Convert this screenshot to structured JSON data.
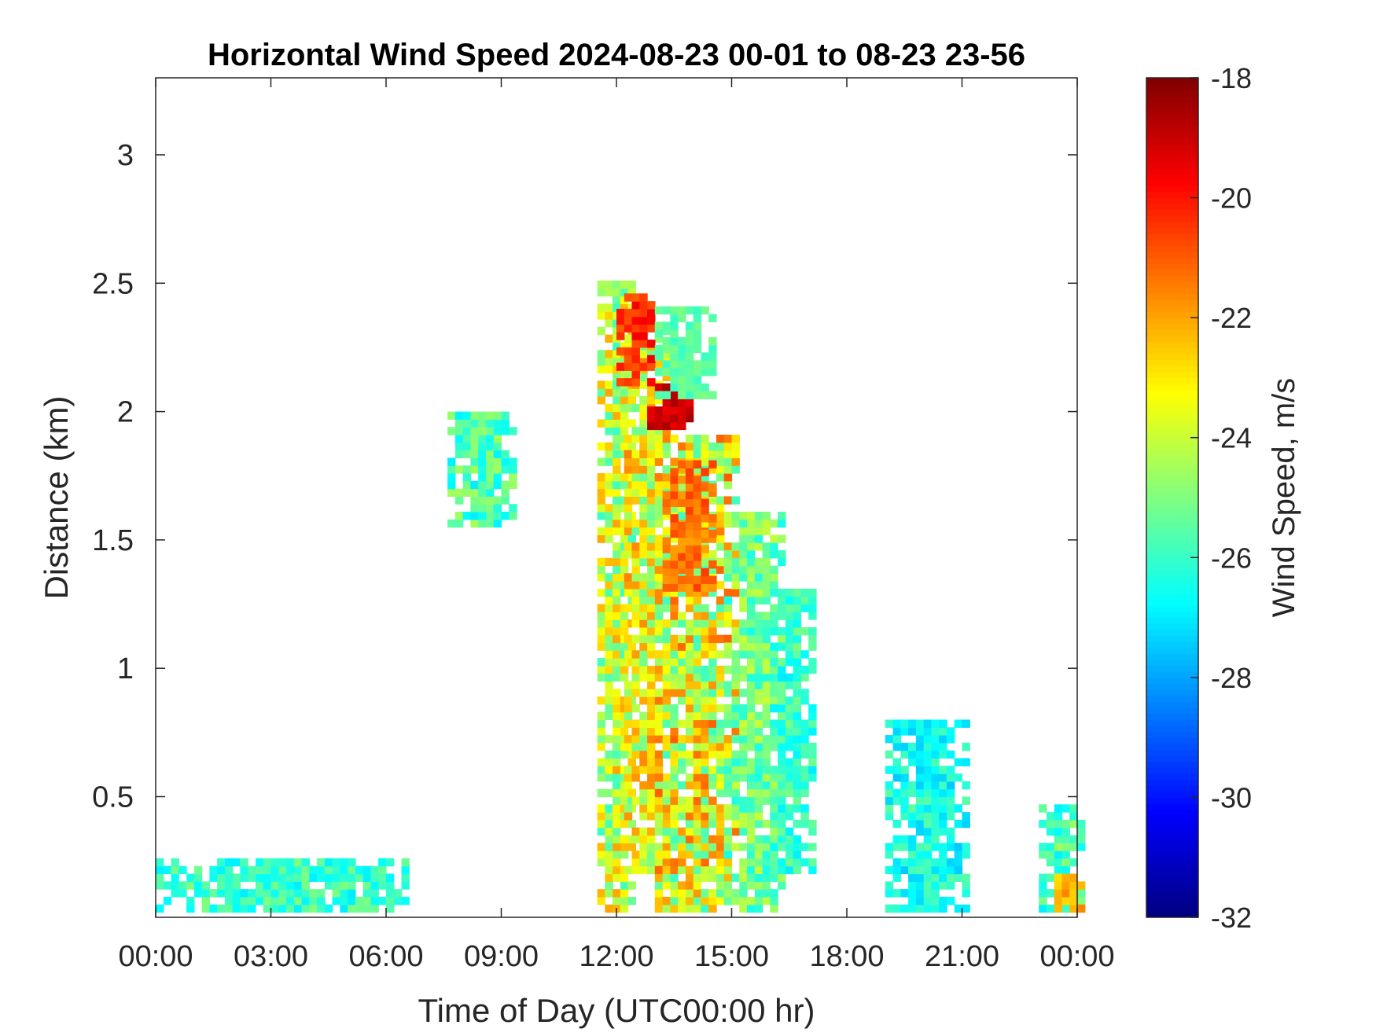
{
  "chart_data": {
    "type": "heatmap",
    "title": "Horizontal Wind Speed 2024-08-23 00-01 to 08-23 23-56",
    "xlabel": "Time of Day (UTC00:00 hr)",
    "ylabel": "Distance (km)",
    "colorbar_label": "Wind Speed, m/s",
    "xlim": [
      0,
      24
    ],
    "ylim": [
      0.03,
      3.3
    ],
    "x_ticks": [
      0,
      3,
      6,
      9,
      12,
      15,
      18,
      21,
      24
    ],
    "x_tick_labels": [
      "00:00",
      "03:00",
      "06:00",
      "09:00",
      "12:00",
      "15:00",
      "18:00",
      "21:00",
      "00:00"
    ],
    "y_ticks": [
      0.5,
      1,
      1.5,
      2,
      2.5,
      3
    ],
    "y_tick_labels": [
      "0.5",
      "1",
      "1.5",
      "2",
      "2.5",
      "3"
    ],
    "colorbar_ticks": [
      -32,
      -30,
      -28,
      -26,
      -24,
      -22,
      -20,
      -18
    ],
    "colorbar_tick_labels": [
      "-32",
      "-30",
      "-28",
      "-26",
      "-24",
      "-22",
      "-20",
      "-18"
    ],
    "clim": [
      -32,
      -18
    ],
    "colormap": "jet",
    "grid": false,
    "time_step_hr": 0.2,
    "range_step_km": 0.03,
    "data_regions": [
      {
        "t": [
          11.5,
          12.4
        ],
        "z": [
          0.05,
          2.5
        ],
        "v": [
          -26,
          -22
        ]
      },
      {
        "t": [
          12.2,
          13.2
        ],
        "z": [
          0.2,
          2.3
        ],
        "v": [
          -25.5,
          -21.5
        ]
      },
      {
        "t": [
          13.0,
          15.0
        ],
        "z": [
          0.05,
          1.9
        ],
        "v": [
          -26,
          -21
        ]
      },
      {
        "t": [
          13.2,
          14.4
        ],
        "z": [
          1.3,
          1.8
        ],
        "v": [
          -22,
          -20.5
        ]
      },
      {
        "t": [
          12.8,
          13.8
        ],
        "z": [
          1.93,
          2.08
        ],
        "v": [
          -19.5,
          -18.5
        ]
      },
      {
        "t": [
          12.0,
          12.8
        ],
        "z": [
          2.1,
          2.45
        ],
        "v": [
          -21,
          -19.5
        ]
      },
      {
        "t": [
          13.0,
          14.5
        ],
        "z": [
          2.05,
          2.4
        ],
        "v": [
          -26,
          -25
        ]
      },
      {
        "t": [
          14.8,
          16.2
        ],
        "z": [
          0.05,
          1.6
        ],
        "v": [
          -26.5,
          -24
        ]
      },
      {
        "t": [
          16.0,
          17.0
        ],
        "z": [
          0.2,
          1.3
        ],
        "v": [
          -27,
          -25
        ]
      },
      {
        "t": [
          7.6,
          9.3
        ],
        "z": [
          1.55,
          2.0
        ],
        "v": [
          -27,
          -24.5
        ]
      },
      {
        "t": [
          23.0,
          24.0
        ],
        "z": [
          0.05,
          0.45
        ],
        "v": [
          -27,
          -24.5
        ]
      },
      {
        "t": [
          23.4,
          24.0
        ],
        "z": [
          0.05,
          0.2
        ],
        "v": [
          -23,
          -21.5
        ]
      },
      {
        "t": [
          0.0,
          6.5
        ],
        "z": [
          0.05,
          0.25
        ],
        "v": [
          -27,
          -25
        ]
      },
      {
        "t": [
          19.0,
          21.0
        ],
        "z": [
          0.05,
          0.8
        ],
        "v": [
          -27.5,
          -25.5
        ]
      }
    ]
  }
}
